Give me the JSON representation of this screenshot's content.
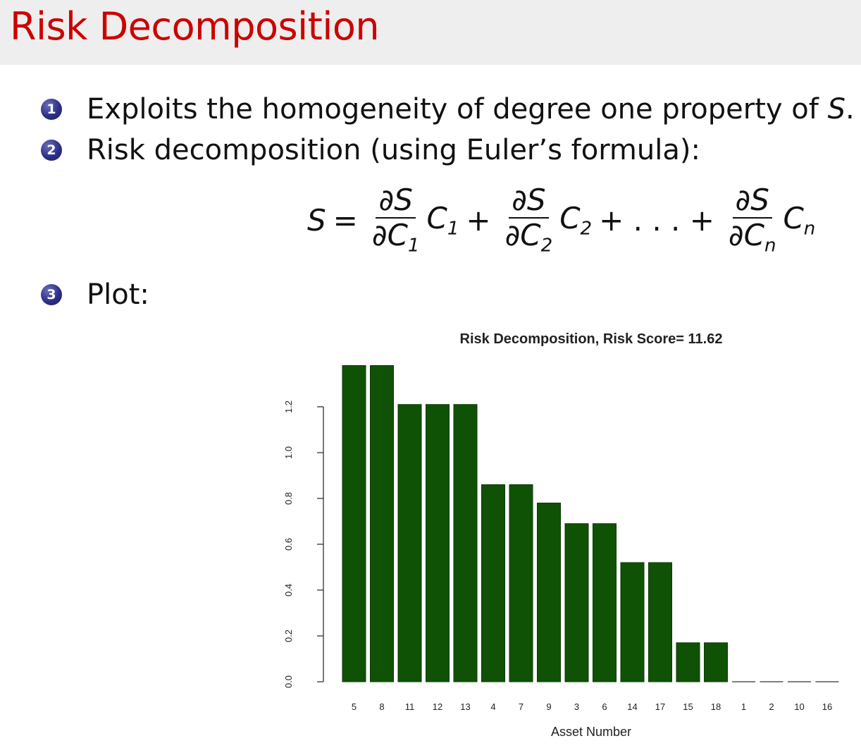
{
  "slide": {
    "title": "Risk Decomposition",
    "bullets": [
      {
        "number": "1",
        "text": "Exploits the homogeneity of degree one property of ",
        "math": "S",
        "suffix": "."
      },
      {
        "number": "2",
        "text": "Risk decomposition (using Euler’s formula):"
      },
      {
        "number": "3",
        "text": "Plot:"
      }
    ],
    "formula": {
      "lhs": "S",
      "eq": "=",
      "terms": [
        {
          "num": "∂S",
          "den_var": "∂C",
          "den_sub": "1",
          "c_var": "C",
          "c_sub": "1"
        },
        {
          "num": "∂S",
          "den_var": "∂C",
          "den_sub": "2",
          "c_var": "C",
          "c_sub": "2"
        },
        {
          "num": "∂S",
          "den_var": "∂C",
          "den_sub": "n",
          "c_var": "C",
          "c_sub": "n"
        }
      ],
      "plus": "+",
      "ellipsis": "+ . . . +"
    },
    "bullet_color": "#2c2f86",
    "title_color": "#cc0000"
  },
  "chart_data": {
    "type": "bar",
    "title": "Risk Decomposition, Risk Score= 11.62",
    "xlabel": "Asset Number",
    "ylabel": "",
    "categories": [
      "5",
      "8",
      "11",
      "12",
      "13",
      "4",
      "7",
      "9",
      "3",
      "6",
      "14",
      "17",
      "15",
      "18",
      "1",
      "2",
      "10",
      "16"
    ],
    "values": [
      1.38,
      1.38,
      1.21,
      1.21,
      1.21,
      0.86,
      0.86,
      0.78,
      0.69,
      0.69,
      0.52,
      0.52,
      0.17,
      0.17,
      0.0,
      0.0,
      0.0,
      0.0
    ],
    "yticks": [
      "0.0",
      "0.2",
      "0.4",
      "0.6",
      "0.8",
      "1.0",
      "1.2"
    ],
    "ylim": [
      0,
      1.38
    ],
    "bar_color": "#0f5205",
    "grid": false
  }
}
